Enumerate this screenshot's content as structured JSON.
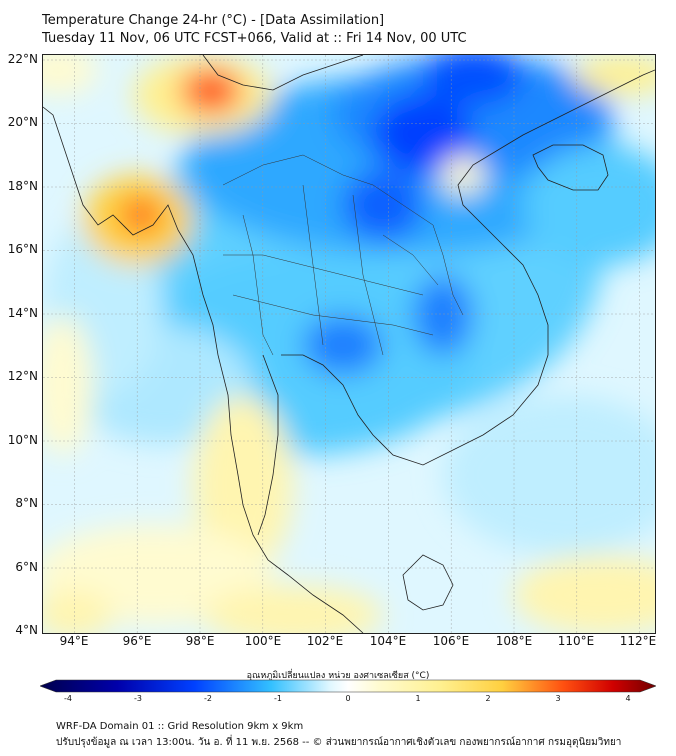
{
  "title": {
    "line1": "Temperature Change 24-hr (°C) - [Data Assimilation]",
    "line2": "Tuesday 11 Nov, 06 UTC FCST+066, Valid at :: Fri 14 Nov, 00 UTC"
  },
  "axes": {
    "lat_labels": [
      "22°N",
      "20°N",
      "18°N",
      "16°N",
      "14°N",
      "12°N",
      "10°N",
      "8°N",
      "6°N",
      "4°N"
    ],
    "lon_labels": [
      "94°E",
      "96°E",
      "98°E",
      "100°E",
      "102°E",
      "104°E",
      "106°E",
      "108°E",
      "110°E",
      "112°E"
    ]
  },
  "colorbar": {
    "title": "อุณหภูมิเปลี่ยนแปลง หน่วย องศาเซลเซียส (°C)",
    "ticks": [
      "-4",
      "-3",
      "-2",
      "-1",
      "0",
      "1",
      "2",
      "3",
      "4"
    ],
    "colors": [
      "#00004c",
      "#0000aa",
      "#0040ff",
      "#1090ff",
      "#33c0ff",
      "#88e0ff",
      "#dff7ff",
      "#ffffff",
      "#fffbd0",
      "#fff090",
      "#ffd040",
      "#ffa020",
      "#ff5010",
      "#d00000",
      "#700000"
    ]
  },
  "footer": {
    "line1": "WRF-DA Domain 01 :: Grid Resolution 9km x 9km",
    "line2": "ปรับปรุงข้อมูล ณ เวลา 13:00น. วัน อ. ที่ 11 พ.ย. 2568 -- © ส่วนพยากรณ์อากาศเชิงตัวเลข กองพยากรณ์อากาศ กรมอุตุนิยมวิทยา"
  }
}
